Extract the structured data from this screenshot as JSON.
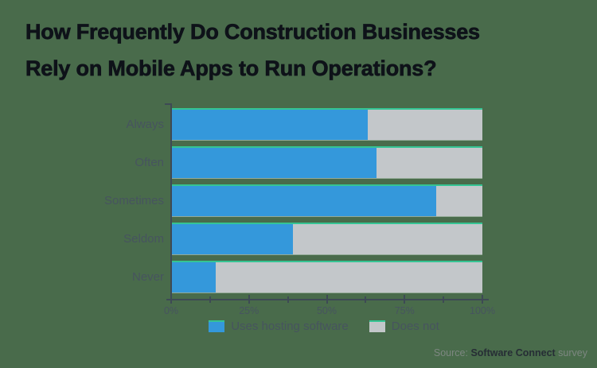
{
  "title": {
    "line1": "How Frequently Do Construction Businesses",
    "line2": "Rely on Mobile Apps to Run Operations?"
  },
  "chart_data": {
    "type": "bar",
    "orientation": "horizontal",
    "stacked": true,
    "title": "How Frequently Do Construction Businesses Rely on Mobile Apps to Run Operations?",
    "categories": [
      "Always",
      "Often",
      "Sometimes",
      "Seldom",
      "Never"
    ],
    "series": [
      {
        "name": "Uses hosting software",
        "color": "#3498db",
        "values": [
          63,
          66,
          85,
          39,
          14
        ]
      },
      {
        "name": "Does not",
        "color": "#c3c7ca",
        "values": [
          37,
          34,
          15,
          61,
          86
        ]
      }
    ],
    "xlim": [
      0,
      100
    ],
    "x_tick_labels": [
      "0%",
      "25%",
      "50%",
      "75%",
      "100%"
    ],
    "x_tick_percents": [
      0,
      12.5,
      25,
      37.5,
      50,
      62.5,
      75,
      87.5,
      100
    ],
    "xlabel": "",
    "ylabel": "",
    "grid": false,
    "legend_position": "bottom"
  },
  "legend": {
    "items": [
      {
        "label": "Uses hosting software",
        "color": "#3498db"
      },
      {
        "label": "Does not",
        "color": "#c3c7ca"
      }
    ]
  },
  "source": {
    "prefix": "Source: ",
    "name": "Software Connect",
    "suffix": " survey"
  },
  "style": {
    "background": "#496b4b",
    "accent_line": "#35c493",
    "axis_color": "#3e4a55",
    "label_color": "#47545f",
    "title_color": "#0e1219"
  }
}
